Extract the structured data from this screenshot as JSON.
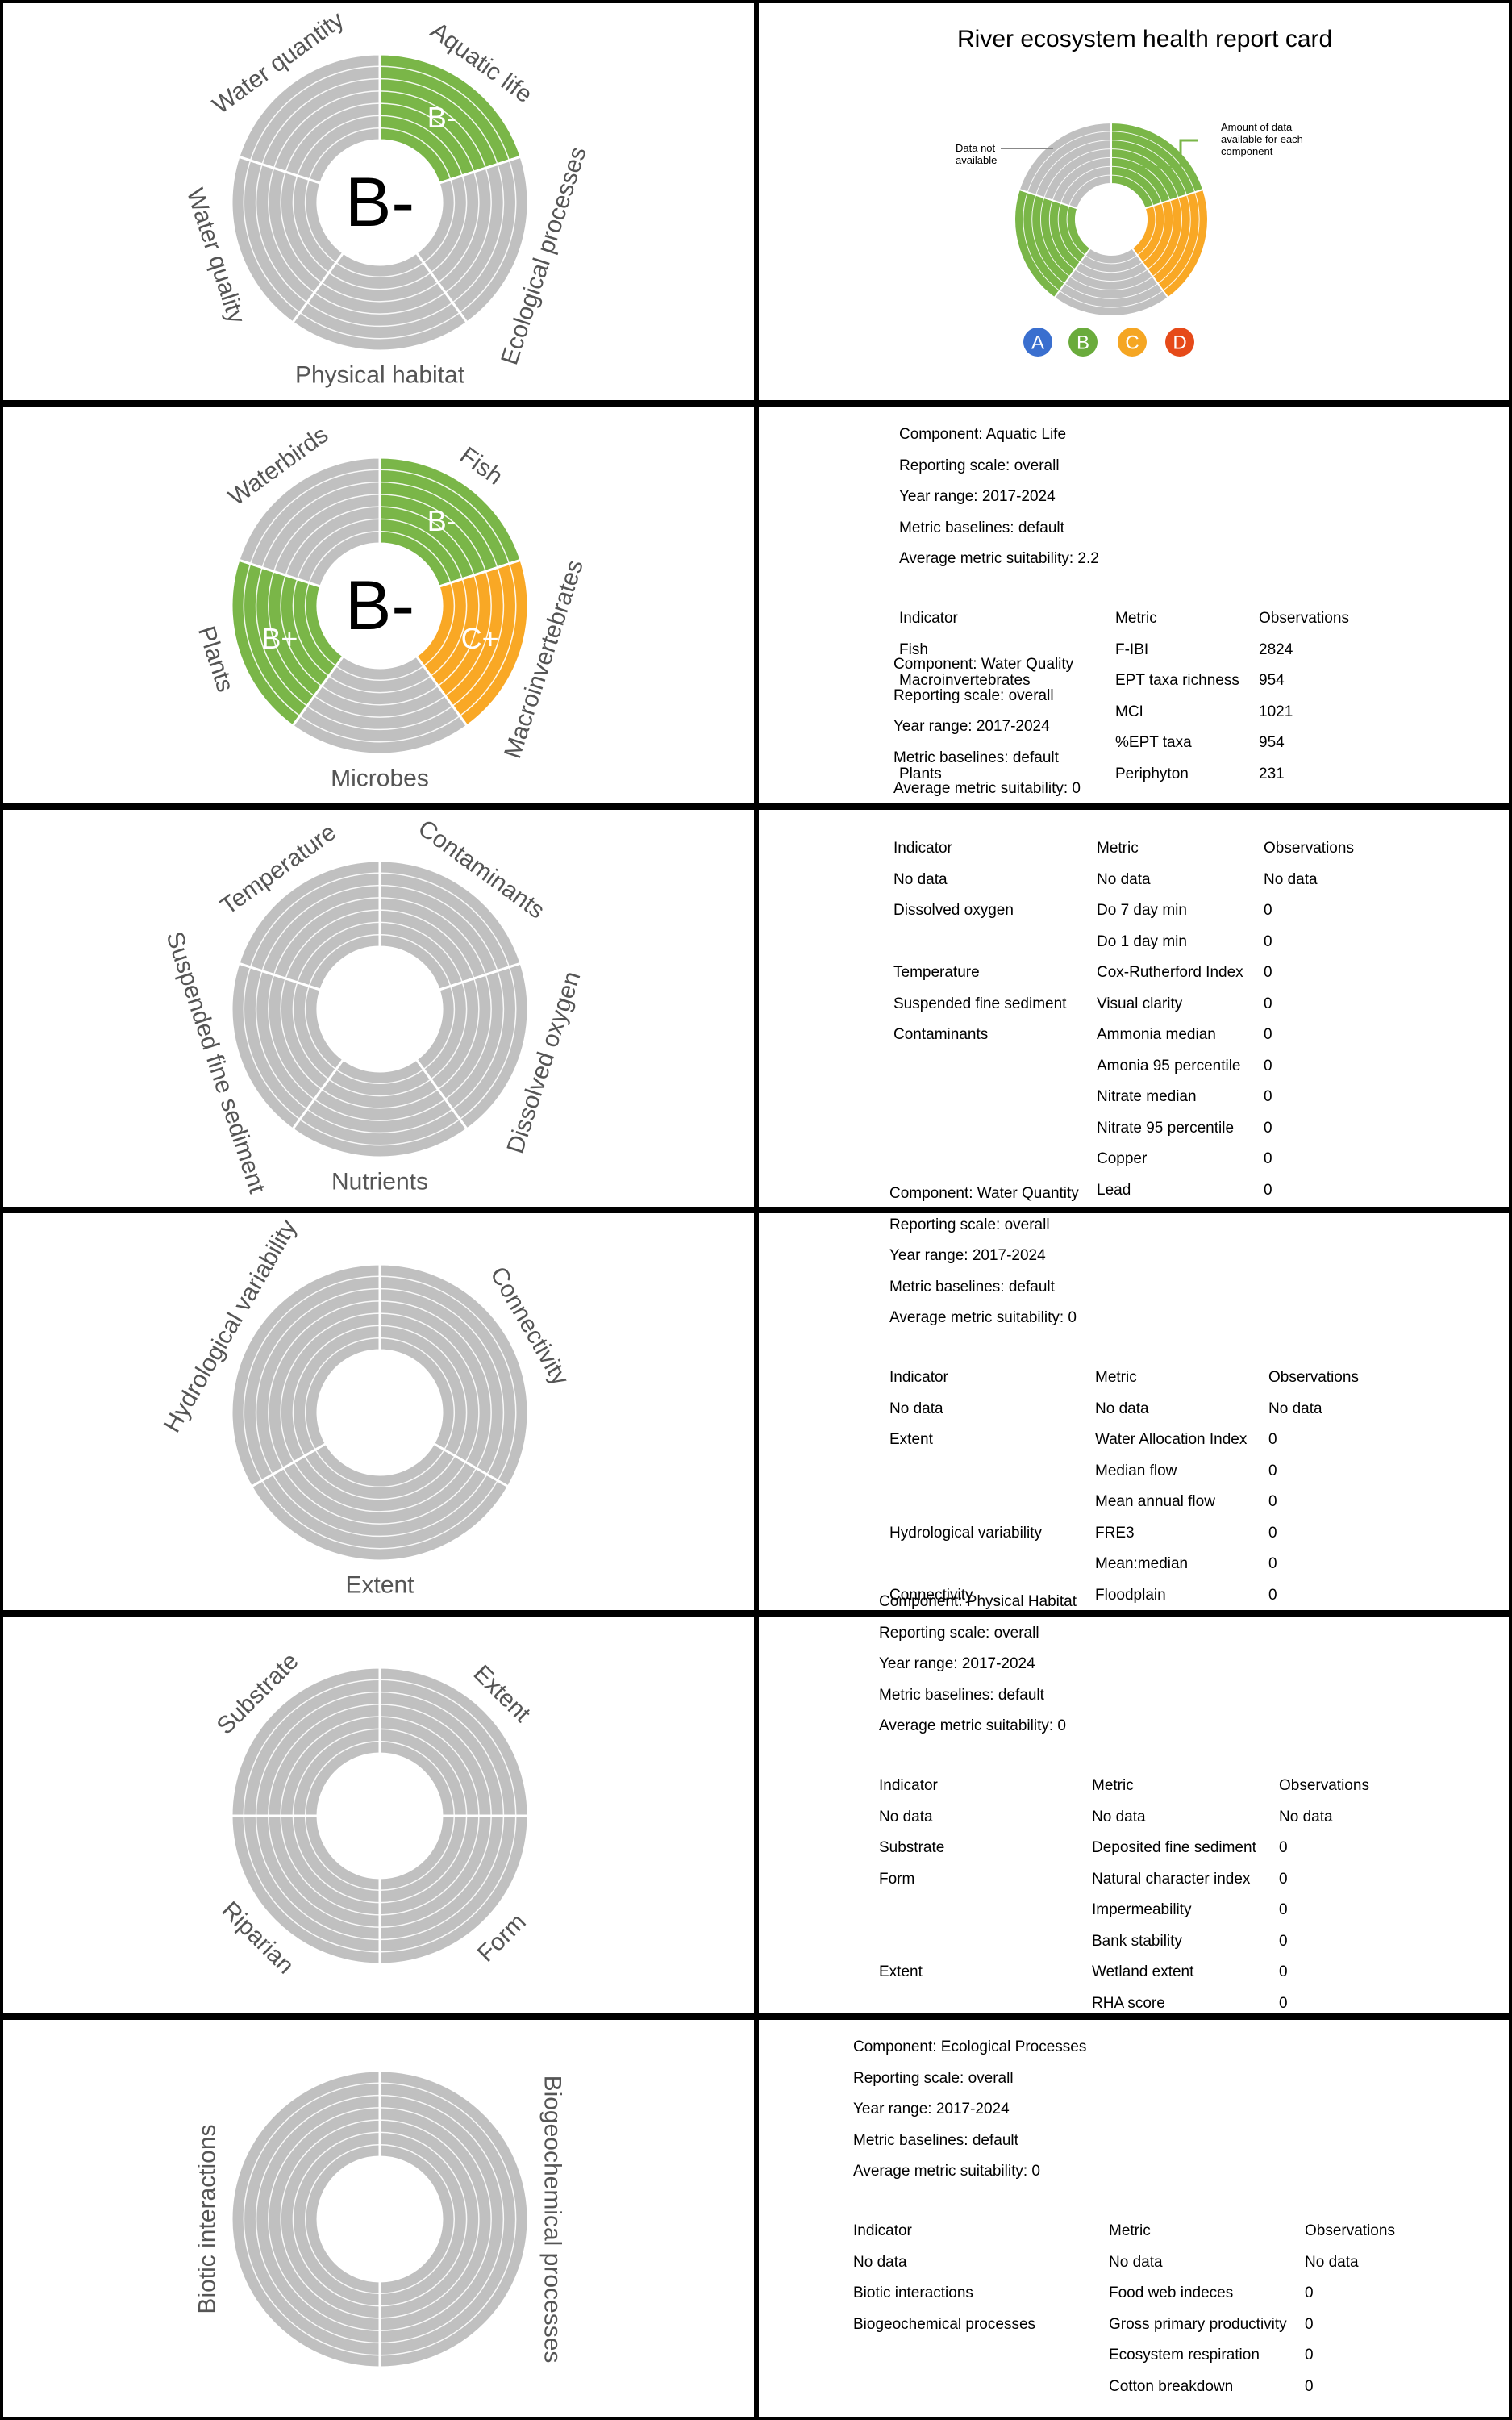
{
  "colors": {
    "grey": "#c0c0c0",
    "green": "#7ab648",
    "orange": "#f9a825",
    "ring_line": "#ffffff",
    "leader": "#7ab648"
  },
  "legend_colors": [
    "#3a6fcf",
    "#6aab3c",
    "#f5a623",
    "#e64a19"
  ],
  "overview": {
    "title": "River ecosystem health report card",
    "data_not_available": "Data not available",
    "amount_of_data": "Amount of data available for each component",
    "legend": [
      "A",
      "B",
      "C",
      "D"
    ]
  },
  "charts": [
    {
      "center_grade": "B-",
      "segments": [
        {
          "label": "Aquatic life",
          "grade": "B-",
          "color": "green"
        },
        {
          "label": "Ecological processes",
          "grade": "",
          "color": "grey"
        },
        {
          "label": "Physical habitat",
          "grade": "",
          "color": "grey"
        },
        {
          "label": "Water quality",
          "grade": "",
          "color": "grey"
        },
        {
          "label": "Water quantity",
          "grade": "",
          "color": "grey"
        }
      ]
    },
    {
      "center_grade": "B-",
      "segments": [
        {
          "label": "Fish",
          "grade": "B-",
          "color": "green"
        },
        {
          "label": "Macroinvertebrates",
          "grade": "C+",
          "color": "orange"
        },
        {
          "label": "Microbes",
          "grade": "",
          "color": "grey"
        },
        {
          "label": "Plants",
          "grade": "B+",
          "color": "green"
        },
        {
          "label": "Waterbirds",
          "grade": "",
          "color": "grey"
        }
      ]
    },
    {
      "center_grade": "",
      "segments": [
        {
          "label": "Contaminants",
          "grade": "",
          "color": "grey"
        },
        {
          "label": "Dissolved oxygen",
          "grade": "",
          "color": "grey"
        },
        {
          "label": "Nutrients",
          "grade": "",
          "color": "grey"
        },
        {
          "label": "Suspended fine sediment",
          "grade": "",
          "color": "grey"
        },
        {
          "label": "Temperature",
          "grade": "",
          "color": "grey"
        }
      ]
    },
    {
      "center_grade": "",
      "segments": [
        {
          "label": "Connectivity",
          "grade": "",
          "color": "grey"
        },
        {
          "label": "Extent",
          "grade": "",
          "color": "grey"
        },
        {
          "label": "Hydrological variability",
          "grade": "",
          "color": "grey"
        }
      ]
    },
    {
      "center_grade": "",
      "segments": [
        {
          "label": "Extent",
          "grade": "",
          "color": "grey"
        },
        {
          "label": "Form",
          "grade": "",
          "color": "grey"
        },
        {
          "label": "Riparian",
          "grade": "",
          "color": "grey"
        },
        {
          "label": "Substrate",
          "grade": "",
          "color": "grey"
        }
      ]
    },
    {
      "center_grade": "",
      "segments": [
        {
          "label": "Biogeochemical processes",
          "grade": "",
          "color": "grey"
        },
        {
          "label": "Biotic interactions",
          "grade": "",
          "color": "grey"
        }
      ]
    }
  ],
  "info_blocks": [
    {
      "meta": [
        "Component: Aquatic Life",
        "Reporting scale: overall",
        "Year range: 2017-2024",
        "Metric baselines: default",
        "Average metric suitability: 2.2"
      ],
      "headers": [
        "Indicator",
        "Metric",
        "Observations"
      ],
      "rows": [
        [
          "Fish",
          "F-IBI",
          "2824"
        ],
        [
          "Macroinvertebrates",
          "EPT taxa richness",
          "954"
        ],
        [
          "",
          "MCI",
          "1021"
        ],
        [
          "",
          "%EPT taxa",
          "954"
        ],
        [
          "Plants",
          "Periphyton",
          "231"
        ]
      ]
    },
    {
      "meta": [
        "Component: Water Quality",
        "Reporting scale: overall",
        "Year range: 2017-2024",
        "Metric baselines: default",
        "Average metric suitability: 0"
      ],
      "headers": [
        "Indicator",
        "Metric",
        "Observations"
      ],
      "rows": [
        [
          "No data",
          "No data",
          "No data"
        ],
        [
          "Dissolved oxygen",
          "Do 7 day min",
          "0"
        ],
        [
          "",
          "Do 1 day min",
          "0"
        ],
        [
          "Temperature",
          "Cox-Rutherford Index",
          "0"
        ],
        [
          "Suspended fine sediment",
          "Visual clarity",
          "0"
        ],
        [
          "Contaminants",
          "Ammonia median",
          "0"
        ],
        [
          "",
          "Amonia 95 percentile",
          "0"
        ],
        [
          "",
          "Nitrate median",
          "0"
        ],
        [
          "",
          "Nitrate 95 percentile",
          "0"
        ],
        [
          "",
          "Copper",
          "0"
        ],
        [
          "",
          "Lead",
          "0"
        ]
      ]
    },
    {
      "meta": [
        "Component: Water Quantity",
        "Reporting scale: overall",
        "Year range: 2017-2024",
        "Metric baselines: default",
        "Average metric suitability: 0"
      ],
      "headers": [
        "Indicator",
        "Metric",
        "Observations"
      ],
      "rows": [
        [
          "No data",
          "No data",
          "No data"
        ],
        [
          "Extent",
          "Water Allocation Index",
          "0"
        ],
        [
          "",
          "Median flow",
          "0"
        ],
        [
          "",
          "Mean annual flow",
          "0"
        ],
        [
          "Hydrological variability",
          "FRE3",
          "0"
        ],
        [
          "",
          "Mean:median",
          "0"
        ],
        [
          "Connectivity",
          "Floodplain",
          "0"
        ]
      ]
    },
    {
      "meta": [
        "Component: Physical Habitat",
        "Reporting scale: overall",
        "Year range: 2017-2024",
        "Metric baselines: default",
        "Average metric suitability: 0"
      ],
      "headers": [
        "Indicator",
        "Metric",
        "Observations"
      ],
      "rows": [
        [
          "No data",
          "No data",
          "No data"
        ],
        [
          "Substrate",
          "Deposited fine sediment",
          "0"
        ],
        [
          "Form",
          "Natural character index",
          "0"
        ],
        [
          "",
          "Impermeability",
          "0"
        ],
        [
          "",
          "Bank stability",
          "0"
        ],
        [
          "Extent",
          "Wetland extent",
          "0"
        ],
        [
          "",
          "RHA score",
          "0"
        ]
      ]
    },
    {
      "meta": [
        "Component: Ecological Processes",
        "Reporting scale: overall",
        "Year range: 2017-2024",
        "Metric baselines: default",
        "Average metric suitability: 0"
      ],
      "headers": [
        "Indicator",
        "Metric",
        "Observations"
      ],
      "rows": [
        [
          "No data",
          "No data",
          "No data"
        ],
        [
          "Biotic interactions",
          "Food web indeces",
          "0"
        ],
        [
          "Biogeochemical processes",
          "Gross primary productivity",
          "0"
        ],
        [
          "",
          "Ecosystem respiration",
          "0"
        ],
        [
          "",
          "Cotton breakdown",
          "0"
        ]
      ]
    }
  ]
}
